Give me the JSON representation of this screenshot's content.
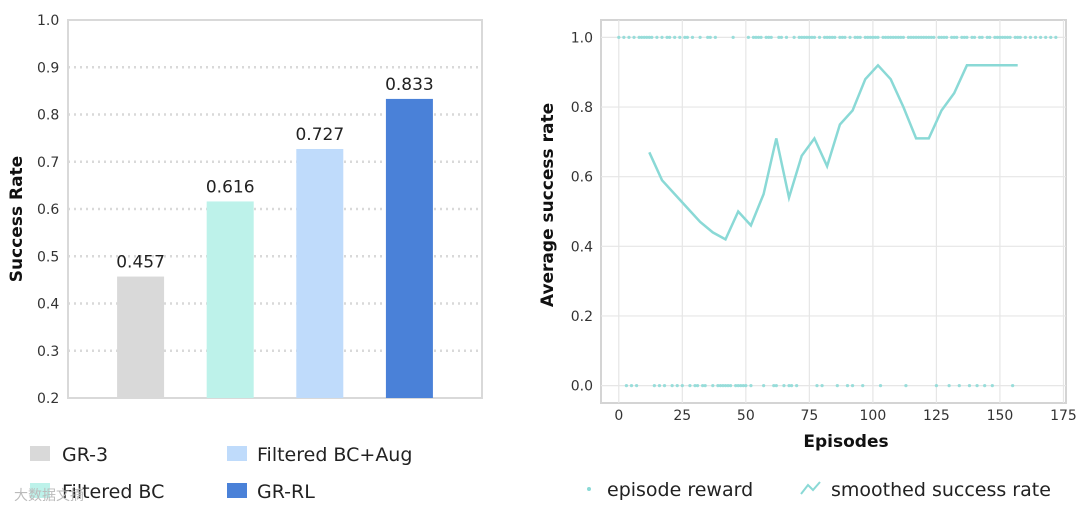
{
  "chart_data": [
    {
      "type": "bar",
      "categories": [
        "GR-3",
        "Filtered BC",
        "Filtered BC+Aug",
        "GR-RL"
      ],
      "values": [
        0.457,
        0.616,
        0.727,
        0.833
      ],
      "value_labels": [
        "0.457",
        "0.616",
        "0.727",
        "0.833"
      ],
      "colors": [
        "#d9d9d9",
        "#bdf2ea",
        "#bfdbfb",
        "#4a81d8"
      ],
      "ylabel": "Success Rate",
      "ylim": [
        0.2,
        1.0
      ],
      "yticks": [
        "0.2",
        "0.3",
        "0.4",
        "0.5",
        "0.6",
        "0.7",
        "0.8",
        "0.9",
        "1.0"
      ],
      "grid": true,
      "legend": {
        "placement": "bottom",
        "entries": [
          "GR-3",
          "Filtered BC+Aug",
          "Filtered BC",
          "GR-RL"
        ]
      }
    },
    {
      "type": "line",
      "xlabel": "Episodes",
      "ylabel": "Average success rate",
      "xlim": [
        -7,
        176
      ],
      "ylim": [
        -0.05,
        1.05
      ],
      "xticks": [
        "0",
        "25",
        "50",
        "75",
        "100",
        "125",
        "150",
        "175"
      ],
      "yticks": [
        "0.0",
        "0.2",
        "0.4",
        "0.6",
        "0.8",
        "1.0"
      ],
      "grid": true,
      "color": "#8ad9d6",
      "series": [
        {
          "name": "episode reward",
          "style": "scatter",
          "x": [
            0,
            2,
            3,
            4,
            5,
            6,
            7,
            8,
            9,
            10,
            11,
            12,
            13,
            14,
            15,
            16,
            17,
            18,
            19,
            20,
            21,
            22,
            23,
            24,
            25,
            26,
            27,
            28,
            29,
            30,
            31,
            32,
            33,
            34,
            35,
            36,
            37,
            38,
            39,
            40,
            41,
            42,
            43,
            44,
            45,
            46,
            47,
            48,
            49,
            50,
            51,
            52,
            53,
            54,
            55,
            56,
            57,
            58,
            59,
            60,
            61,
            62,
            63,
            64,
            65,
            66,
            67,
            68,
            69,
            70,
            71,
            72,
            73,
            74,
            75,
            76,
            77,
            78,
            79,
            80,
            81,
            82,
            83,
            84,
            85,
            86,
            87,
            88,
            89,
            90,
            91,
            92,
            93,
            94,
            95,
            96,
            97,
            98,
            99,
            100,
            101,
            102,
            103,
            104,
            105,
            106,
            107,
            108,
            109,
            110,
            111,
            112,
            113,
            114,
            115,
            116,
            117,
            118,
            119,
            120,
            121,
            122,
            123,
            124,
            125,
            126,
            127,
            128,
            129,
            130,
            131,
            132,
            133,
            134,
            135,
            136,
            137,
            138,
            139,
            140,
            141,
            142,
            143,
            144,
            145,
            146,
            147,
            148,
            149,
            150,
            151,
            152,
            153,
            154,
            155,
            156,
            157,
            158,
            160,
            162,
            164,
            166,
            168,
            170,
            172
          ],
          "y": [
            1,
            1,
            0,
            1,
            0,
            1,
            0,
            1,
            1,
            1,
            1,
            1,
            1,
            0,
            1,
            0,
            1,
            0,
            1,
            1,
            0,
            1,
            0,
            1,
            0,
            1,
            1,
            0,
            1,
            0,
            0,
            1,
            0,
            0,
            1,
            1,
            0,
            1,
            0,
            0,
            0,
            0,
            0,
            0,
            1,
            0,
            0,
            0,
            0,
            0,
            1,
            0,
            1,
            1,
            1,
            1,
            0,
            1,
            1,
            1,
            0,
            0,
            1,
            1,
            0,
            1,
            0,
            0,
            1,
            0,
            1,
            1,
            1,
            1,
            1,
            1,
            1,
            0,
            1,
            0,
            1,
            1,
            1,
            1,
            1,
            0,
            1,
            1,
            1,
            0,
            1,
            0,
            1,
            1,
            1,
            0,
            1,
            1,
            1,
            1,
            1,
            1,
            0,
            1,
            1,
            1,
            1,
            1,
            1,
            1,
            1,
            1,
            0,
            1,
            1,
            1,
            1,
            1,
            1,
            1,
            1,
            1,
            1,
            1,
            0,
            1,
            1,
            1,
            1,
            0,
            1,
            1,
            1,
            0,
            1,
            1,
            1,
            0,
            1,
            1,
            0,
            1,
            1,
            0,
            1,
            1,
            0,
            1,
            1,
            1,
            1,
            1,
            1,
            1,
            0,
            1,
            1,
            1,
            1,
            1,
            1,
            1,
            1,
            1,
            1
          ]
        },
        {
          "name": "smoothed success rate",
          "style": "line",
          "x": [
            12,
            17,
            22,
            27,
            32,
            37,
            42,
            47,
            52,
            57,
            62,
            67,
            72,
            77,
            82,
            87,
            92,
            97,
            102,
            107,
            112,
            117,
            122,
            127,
            132,
            137,
            142,
            147,
            152,
            157
          ],
          "y": [
            0.67,
            0.59,
            0.55,
            0.51,
            0.47,
            0.44,
            0.42,
            0.5,
            0.46,
            0.55,
            0.71,
            0.54,
            0.66,
            0.71,
            0.63,
            0.75,
            0.79,
            0.88,
            0.92,
            0.88,
            0.8,
            0.71,
            0.71,
            0.79,
            0.84,
            0.92,
            0.92,
            0.92,
            0.92,
            0.92
          ]
        }
      ],
      "legend": {
        "placement": "bottom",
        "entries": [
          "episode reward",
          "smoothed success rate"
        ]
      }
    }
  ],
  "watermark": "大数据文摘"
}
